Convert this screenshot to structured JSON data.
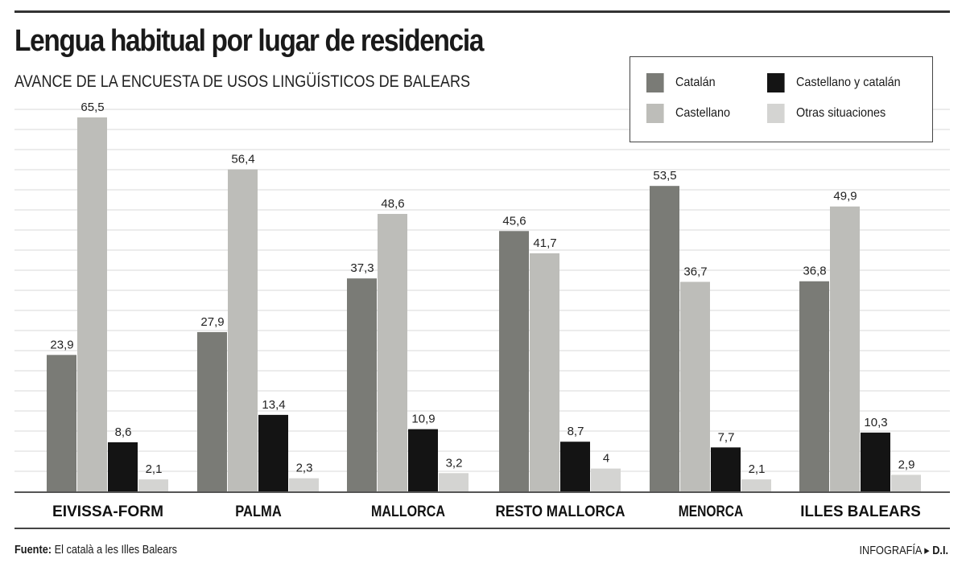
{
  "chart_data": {
    "type": "bar",
    "title": "Lengua habitual por lugar de residencia",
    "subtitle": "AVANCE DE LA ENCUESTA DE USOS LINGÜÍSTICOS DE BALEARS",
    "categories": [
      "EIVISSA-FORM",
      "PALMA",
      "MALLORCA",
      "RESTO MALLORCA",
      "MENORCA",
      "ILLES BALEARS"
    ],
    "series": [
      {
        "name": "Catalán",
        "color": "#7a7b76",
        "values": [
          23.9,
          27.9,
          37.3,
          45.6,
          53.5,
          36.8
        ],
        "labels": [
          "23,9",
          "27,9",
          "37,3",
          "45,6",
          "53,5",
          "36,8"
        ]
      },
      {
        "name": "Castellano",
        "color": "#bdbdb9",
        "values": [
          65.5,
          56.4,
          48.6,
          41.7,
          36.7,
          49.9
        ],
        "labels": [
          "65,5",
          "56,4",
          "48,6",
          "41,7",
          "36,7",
          "49,9"
        ]
      },
      {
        "name": "Castellano y catalán",
        "color": "#141414",
        "values": [
          8.6,
          13.4,
          10.9,
          8.7,
          7.7,
          10.3
        ],
        "labels": [
          "8,6",
          "13,4",
          "10,9",
          "8,7",
          "7,7",
          "10,3"
        ]
      },
      {
        "name": "Otras situaciones",
        "color": "#d4d4d2",
        "values": [
          2.1,
          2.3,
          3.2,
          4,
          2.1,
          2.9
        ],
        "labels": [
          "2,1",
          "2,3",
          "3,2",
          "4",
          "2,1",
          "2,9"
        ]
      }
    ],
    "ylim": [
      0,
      67
    ],
    "grid": true,
    "legend": "top-right"
  },
  "footer": {
    "source_label": "Fuente:",
    "source_text": "El català a les Illes Balears",
    "credit_label": "INFOGRAFÍA",
    "credit_name": "D.I."
  }
}
